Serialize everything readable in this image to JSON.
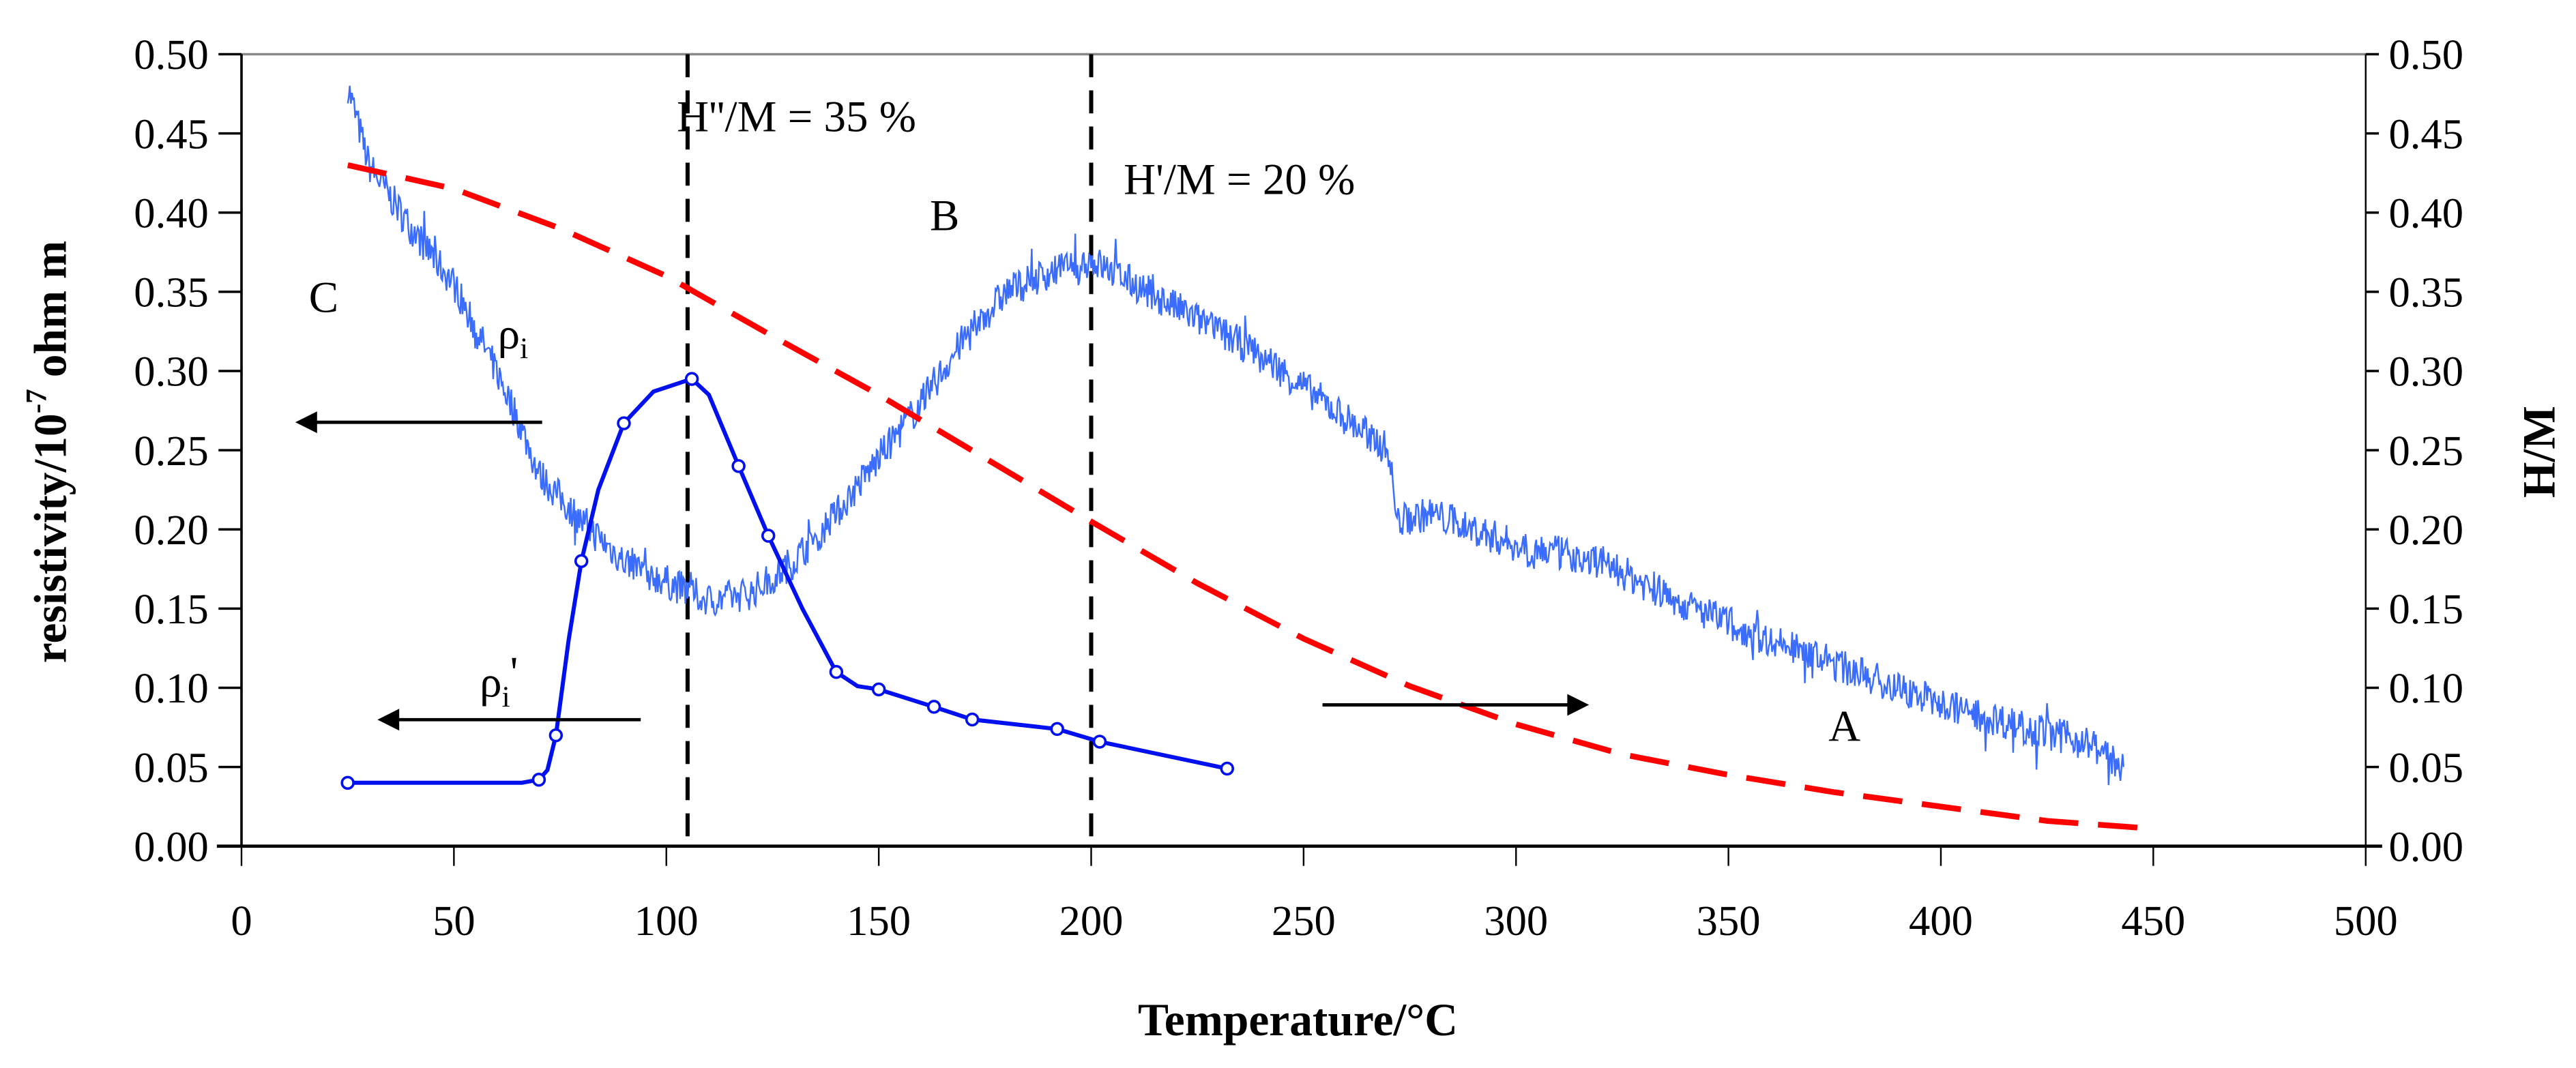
{
  "chart_data": {
    "type": "line",
    "xlabel": "Temperature/°C",
    "ylabel_left": "resistivity/10",
    "ylabel_left_exp": "-7",
    "ylabel_left_unit": " ohm m",
    "ylabel_right": "H/M",
    "xlim": [
      0,
      500
    ],
    "ylim_left": [
      0,
      0.5
    ],
    "ylim_right": [
      0,
      0.5
    ],
    "x_ticks": [
      "0",
      "50",
      "100",
      "150",
      "200",
      "250",
      "300",
      "350",
      "400",
      "450",
      "500"
    ],
    "y_ticks": [
      "0.00",
      "0.05",
      "0.10",
      "0.15",
      "0.20",
      "0.25",
      "0.30",
      "0.35",
      "0.40",
      "0.45",
      "0.50"
    ],
    "grid": false,
    "colors": {
      "rho_i": "#3a6cff",
      "rho_i_prime": "#0010ee",
      "hm": "#ff0000",
      "annot": "#000000"
    },
    "series": [
      {
        "name": "rho_i",
        "axis": "left",
        "style": "noisy-thin",
        "points": [
          [
            25,
            0.48
          ],
          [
            27,
            0.46
          ],
          [
            30,
            0.43
          ],
          [
            35,
            0.41
          ],
          [
            40,
            0.39
          ],
          [
            50,
            0.355
          ],
          [
            60,
            0.3
          ],
          [
            65,
            0.27
          ],
          [
            70,
            0.235
          ],
          [
            80,
            0.205
          ],
          [
            90,
            0.18
          ],
          [
            100,
            0.167
          ],
          [
            110,
            0.155
          ],
          [
            120,
            0.16
          ],
          [
            130,
            0.18
          ],
          [
            140,
            0.21
          ],
          [
            150,
            0.245
          ],
          [
            160,
            0.28
          ],
          [
            170,
            0.32
          ],
          [
            180,
            0.35
          ],
          [
            190,
            0.362
          ],
          [
            200,
            0.37
          ],
          [
            210,
            0.355
          ],
          [
            220,
            0.34
          ],
          [
            230,
            0.325
          ],
          [
            240,
            0.31
          ],
          [
            250,
            0.29
          ],
          [
            260,
            0.27
          ],
          [
            270,
            0.25
          ],
          [
            272,
            0.205
          ],
          [
            280,
            0.21
          ],
          [
            300,
            0.19
          ],
          [
            320,
            0.18
          ],
          [
            340,
            0.152
          ],
          [
            360,
            0.13
          ],
          [
            380,
            0.11
          ],
          [
            400,
            0.09
          ],
          [
            420,
            0.075
          ],
          [
            435,
            0.065
          ],
          [
            443,
            0.05
          ]
        ]
      },
      {
        "name": "rho_i_prime",
        "axis": "left",
        "style": "line-markers",
        "points": [
          [
            25,
            0.04
          ],
          [
            50,
            0.04
          ],
          [
            66,
            0.04
          ],
          [
            70,
            0.042
          ],
          [
            72,
            0.048
          ],
          [
            74,
            0.07
          ],
          [
            77,
            0.13
          ],
          [
            80,
            0.18
          ],
          [
            84,
            0.225
          ],
          [
            90,
            0.267
          ],
          [
            97,
            0.287
          ],
          [
            106,
            0.295
          ],
          [
            110,
            0.285
          ],
          [
            117,
            0.24
          ],
          [
            124,
            0.196
          ],
          [
            132,
            0.15
          ],
          [
            140,
            0.11
          ],
          [
            145,
            0.101
          ],
          [
            150,
            0.099
          ],
          [
            163,
            0.088
          ],
          [
            172,
            0.08
          ],
          [
            192,
            0.074
          ],
          [
            202,
            0.066
          ],
          [
            232,
            0.049
          ]
        ],
        "markers": [
          [
            25,
            0.04
          ],
          [
            70,
            0.042
          ],
          [
            74,
            0.07
          ],
          [
            80,
            0.18
          ],
          [
            90,
            0.267
          ],
          [
            106,
            0.295
          ],
          [
            117,
            0.24
          ],
          [
            124,
            0.196
          ],
          [
            140,
            0.11
          ],
          [
            150,
            0.099
          ],
          [
            163,
            0.088
          ],
          [
            172,
            0.08
          ],
          [
            192,
            0.074
          ],
          [
            202,
            0.066
          ],
          [
            232,
            0.049
          ]
        ]
      },
      {
        "name": "H/M",
        "axis": "right",
        "style": "dashed",
        "points": [
          [
            25,
            0.43
          ],
          [
            50,
            0.415
          ],
          [
            75,
            0.39
          ],
          [
            100,
            0.36
          ],
          [
            125,
            0.322
          ],
          [
            150,
            0.285
          ],
          [
            175,
            0.245
          ],
          [
            200,
            0.205
          ],
          [
            225,
            0.166
          ],
          [
            250,
            0.131
          ],
          [
            275,
            0.101
          ],
          [
            300,
            0.077
          ],
          [
            325,
            0.058
          ],
          [
            350,
            0.045
          ],
          [
            375,
            0.034
          ],
          [
            400,
            0.025
          ],
          [
            425,
            0.016
          ],
          [
            450,
            0.011
          ]
        ]
      }
    ],
    "vlines": [
      105,
      200
    ],
    "annotations": {
      "h2": "H''/M = 35 %",
      "h1": "H'/M = 20 %",
      "A": "A",
      "B": "B",
      "C": "C",
      "rho": "ρ",
      "rho_sub": "i",
      "rho_prime_sub": "i",
      "rho_prime_mark": "'"
    }
  }
}
